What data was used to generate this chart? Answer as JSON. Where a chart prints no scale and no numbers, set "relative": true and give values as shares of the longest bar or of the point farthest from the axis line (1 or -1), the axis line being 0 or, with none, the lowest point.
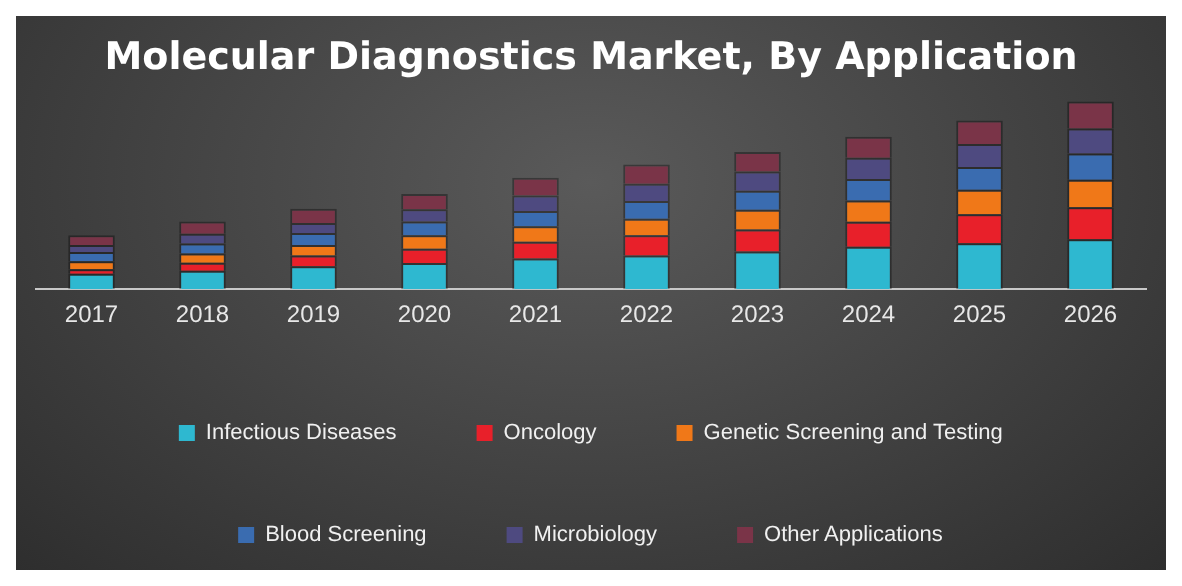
{
  "chart_data": {
    "type": "bar",
    "title": "Molecular Diagnostics Market, By Application",
    "stacked": true,
    "relative": true,
    "legend": "bottom",
    "categories": [
      "2017",
      "2018",
      "2019",
      "2020",
      "2021",
      "2022",
      "2023",
      "2024",
      "2025",
      "2026"
    ],
    "series": [
      {
        "name": "Infectious Diseases",
        "color": "#2eb8d0",
        "values": [
          0.082,
          0.098,
          0.122,
          0.139,
          0.163,
          0.179,
          0.201,
          0.226,
          0.245,
          0.266
        ]
      },
      {
        "name": "Oncology",
        "color": "#e8202a",
        "values": [
          0.024,
          0.043,
          0.057,
          0.076,
          0.09,
          0.109,
          0.117,
          0.133,
          0.155,
          0.171
        ]
      },
      {
        "name": "Genetic Screening and Testing",
        "color": "#f07818",
        "values": [
          0.043,
          0.049,
          0.057,
          0.073,
          0.082,
          0.087,
          0.106,
          0.114,
          0.13,
          0.147
        ]
      },
      {
        "name": "Blood Screening",
        "color": "#3a6cb0",
        "values": [
          0.049,
          0.054,
          0.063,
          0.073,
          0.082,
          0.095,
          0.101,
          0.114,
          0.122,
          0.139
        ]
      },
      {
        "name": "Microbiology",
        "color": "#4e4a80",
        "values": [
          0.038,
          0.052,
          0.054,
          0.065,
          0.082,
          0.092,
          0.103,
          0.114,
          0.122,
          0.133
        ]
      },
      {
        "name": "Other Applications",
        "color": "#7a3448",
        "values": [
          0.052,
          0.065,
          0.076,
          0.082,
          0.095,
          0.103,
          0.103,
          0.111,
          0.125,
          0.144
        ]
      }
    ]
  }
}
